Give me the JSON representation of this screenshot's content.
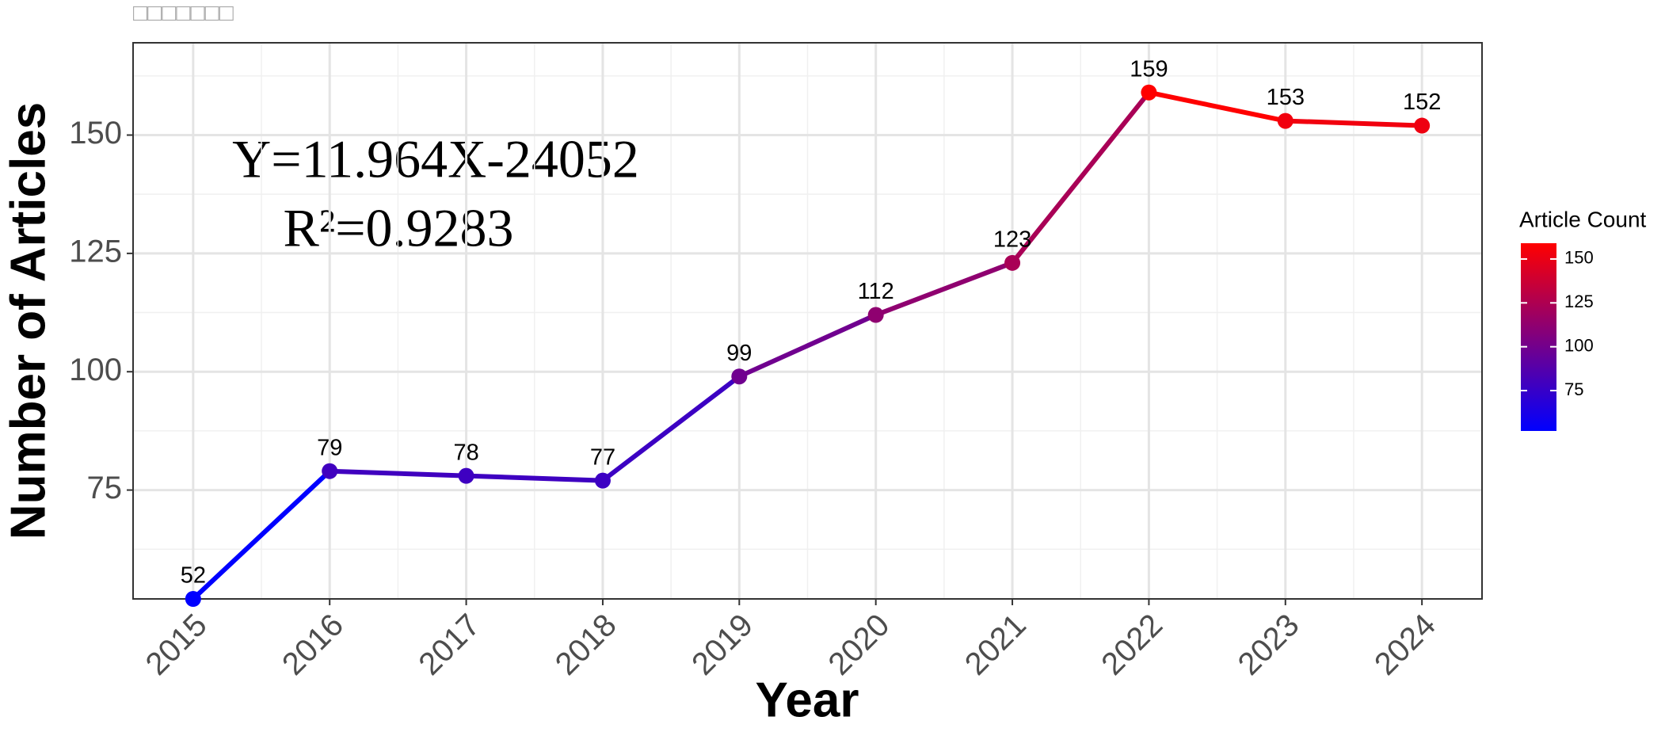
{
  "chart_data": {
    "type": "line",
    "title": "□□□□□□□",
    "x_label": "Year",
    "y_label": "Number of Articles",
    "x": [
      2015,
      2016,
      2017,
      2018,
      2019,
      2020,
      2021,
      2022,
      2023,
      2024
    ],
    "series": [
      {
        "name": "Article Count",
        "values": [
          52,
          79,
          78,
          77,
          99,
          112,
          123,
          159,
          153,
          152
        ]
      }
    ],
    "xlim": [
      2014.56,
      2024.44
    ],
    "xticks": [
      2015,
      2016,
      2017,
      2018,
      2019,
      2020,
      2021,
      2022,
      2023,
      2024
    ],
    "ylim": [
      52,
      169.5
    ],
    "yticks": [
      75,
      100,
      125,
      150
    ],
    "grid": true,
    "minor_grid": true,
    "annotations": [
      "Y=11.964X-24052",
      "R²=0.9283"
    ],
    "colorbar": {
      "title": "Article Count",
      "ticks": [
        75,
        100,
        125,
        150
      ],
      "low_color": "#0000ff",
      "high_color": "#ff0000"
    },
    "legend_position": "right"
  }
}
